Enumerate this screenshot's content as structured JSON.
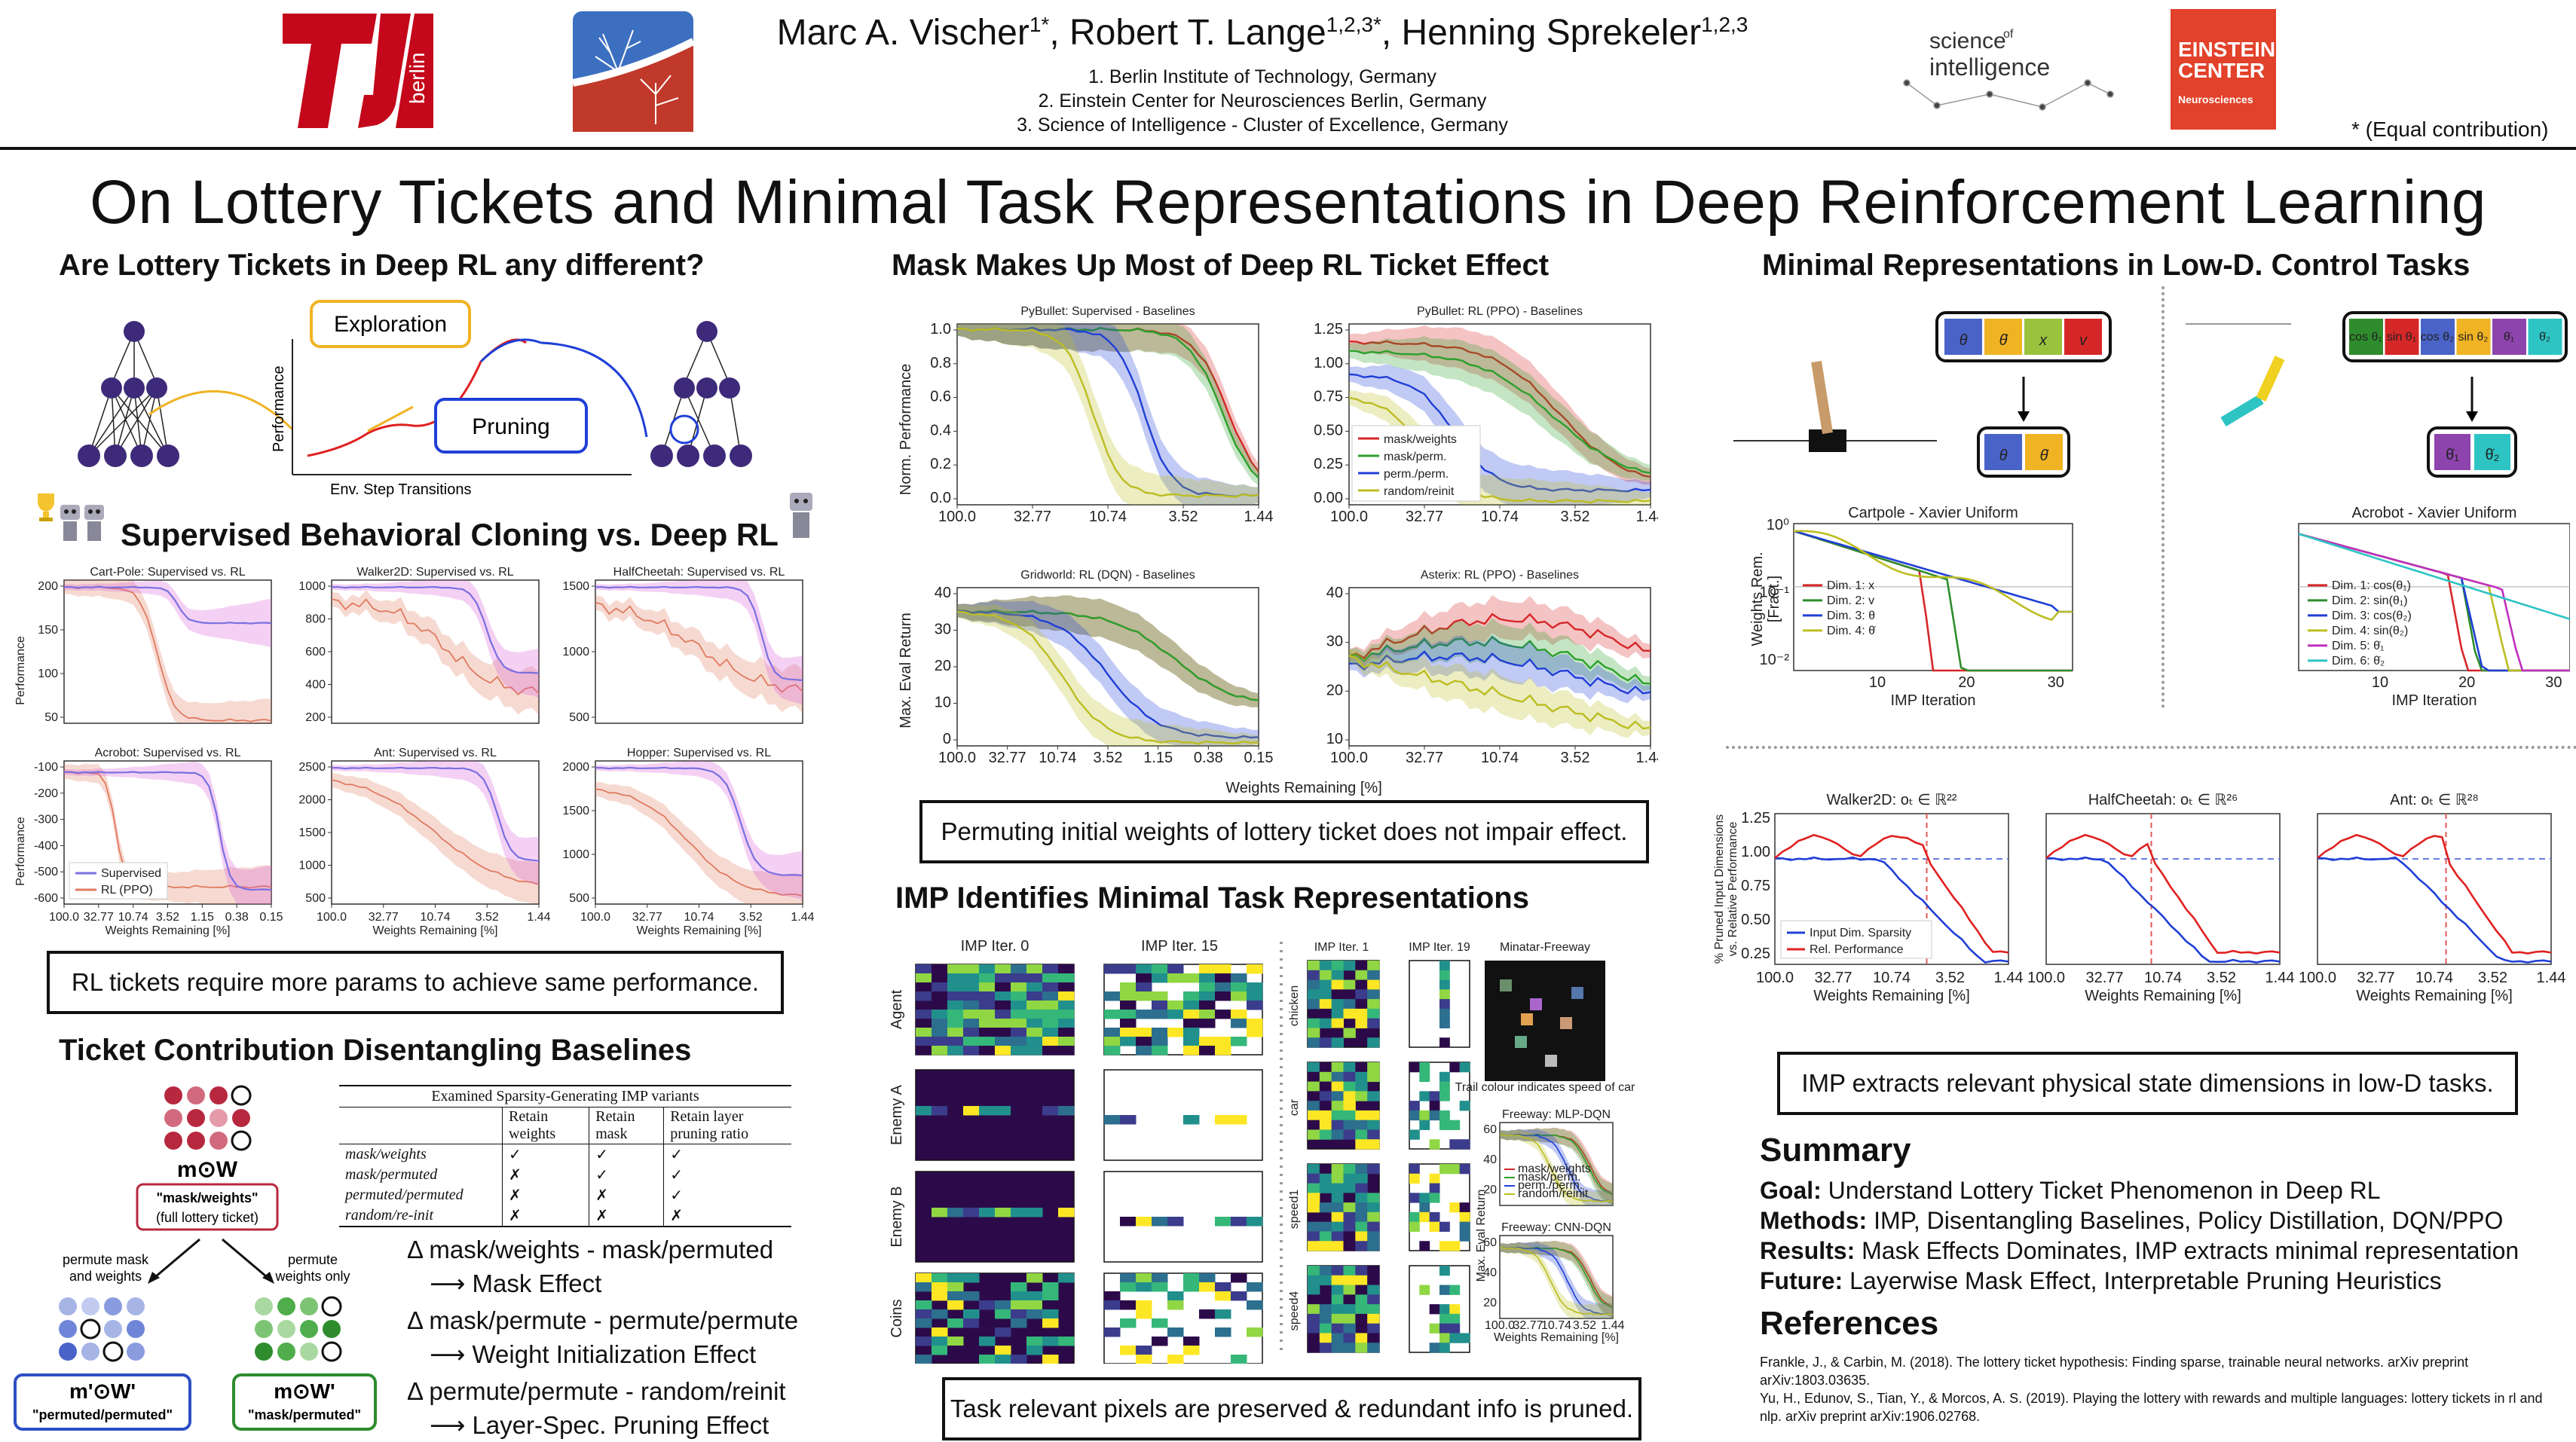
{
  "header": {
    "author_1": "Marc A. Vischer",
    "author_1_sup": "1*",
    "author_2": "Robert T. Lange",
    "author_2_sup": "1,2,3*",
    "author_3": "Henning Sprekeler",
    "author_3_sup": "1,2,3",
    "affiliations": [
      "1. Berlin Institute of Technology, Germany",
      "2. Einstein Center for Neurosciences Berlin, Germany",
      "3. Science of Intelligence - Cluster of Excellence, Germany"
    ],
    "equal_contribution": "* (Equal contribution)",
    "tu_logo_text": "berlin",
    "soi_logo_line1": "science",
    "soi_logo_of": "of",
    "soi_logo_line2": "intelligence",
    "ecn_logo_line1": "EINSTEIN",
    "ecn_logo_line2": "CENTER",
    "ecn_logo_line3": "Neurosciences"
  },
  "title": "On Lottery Tickets and Minimal Task Representations in Deep Reinforcement Learning",
  "col1": {
    "s1_title": "Are Lottery Tickets in Deep RL any different?",
    "exploration": "Exploration",
    "pruning": "Pruning",
    "performance_label": "Performance",
    "env_steps_label": "Env. Step Transitions",
    "s2_title": "Supervised Behavioral Cloning vs. Deep RL",
    "panels": [
      {
        "title": "Cart-Pole: Supervised vs. RL",
        "yticks": [
          "200",
          "150",
          "100",
          "50"
        ]
      },
      {
        "title": "Walker2D: Supervised vs. RL",
        "yticks": [
          "1000",
          "800",
          "600",
          "400",
          "200"
        ]
      },
      {
        "title": "HalfCheetah: Supervised vs. RL",
        "yticks": [
          "1500",
          "1000",
          "500"
        ]
      },
      {
        "title": "Acrobot: Supervised vs. RL",
        "yticks": [
          "-100",
          "-200",
          "-300",
          "-400",
          "-500",
          "-600"
        ]
      },
      {
        "title": "Ant: Supervised vs. RL",
        "yticks": [
          "2500",
          "2000",
          "1500",
          "1000",
          "500"
        ]
      },
      {
        "title": "Hopper: Supervised vs. RL",
        "yticks": [
          "2000",
          "1500",
          "1000",
          "500"
        ]
      }
    ],
    "performance_axis": "Performance",
    "x_ticks_long": [
      "100.0",
      "32.77",
      "10.74",
      "3.52",
      "1.15",
      "0.38",
      "0.15"
    ],
    "x_ticks_short": [
      "100.0",
      "32.77",
      "10.74",
      "3.52",
      "1.44"
    ],
    "weights_remaining": "Weights Remaining [%]",
    "legend_supervised": "Supervised",
    "legend_rl": "RL (PPO)",
    "note": "RL tickets require more params to achieve same performance.",
    "s3_title": "Ticket Contribution Disentangling Baselines",
    "mw_label": "m⊙W",
    "mw_box_line1": "\"mask/weights\"",
    "mw_box_line2": "(full lottery ticket)",
    "permute_mask_weights_1": "permute mask",
    "permute_mask_weights_2": "and weights",
    "permute_weights_only_1": "permute",
    "permute_weights_only_2": "weights only",
    "mpwp_label": "m'⊙W'",
    "mpwp_box": "\"permuted/permuted\"",
    "mwp_label": "m⊙W'",
    "mwp_box": "\"mask/permuted\"",
    "table_caption": "Examined Sparsity-Generating IMP variants",
    "table_headers": [
      "Retain weights",
      "Retain mask",
      "Retain layer pruning ratio"
    ],
    "table_rows": [
      {
        "name": "mask/weights",
        "cells": [
          "✓",
          "✓",
          "✓"
        ]
      },
      {
        "name": "mask/permuted",
        "cells": [
          "✗",
          "✓",
          "✓"
        ]
      },
      {
        "name": "permuted/permuted",
        "cells": [
          "✗",
          "✗",
          "✓"
        ]
      },
      {
        "name": "random/re-init",
        "cells": [
          "✗",
          "✗",
          "✗"
        ]
      }
    ],
    "effects": [
      {
        "diff": "Δ mask/weights  - mask/permuted",
        "effect": "Mask Effect"
      },
      {
        "diff": "Δ mask/permute  - permute/permute",
        "effect": "Weight Initialization Effect"
      },
      {
        "diff": "Δ permute/permute  - random/reinit",
        "effect": "Layer-Spec. Pruning Effect"
      }
    ],
    "arrow": "⟶"
  },
  "col2": {
    "s1_title": "Mask Makes Up Most of Deep RL Ticket Effect",
    "p1_title": "PyBullet: Supervised - Baselines",
    "p2_title": "PyBullet: RL (PPO) - Baselines",
    "p3_title": "Gridworld: RL (DQN) - Baselines",
    "p4_title": "Asterix: RL (PPO) - Baselines",
    "norm_perf": "Norm. Performance",
    "max_eval": "Max. Eval Return",
    "weights_remaining": "Weights Remaining [%]",
    "p1_yticks": [
      "1.0",
      "0.8",
      "0.6",
      "0.4",
      "0.2",
      "0.0"
    ],
    "p2_yticks": [
      "1.25",
      "1.00",
      "0.75",
      "0.50",
      "0.25",
      "0.00"
    ],
    "p3_yticks": [
      "40",
      "30",
      "20",
      "10",
      "0"
    ],
    "p4_yticks": [
      "40",
      "30",
      "20",
      "10"
    ],
    "xt_short": [
      "100.0",
      "32.77",
      "10.74",
      "3.52",
      "1.44"
    ],
    "xt_long": [
      "100.0",
      "32.77",
      "10.74",
      "3.52",
      "1.15",
      "0.38",
      "0.15"
    ],
    "legend": [
      "mask/weights",
      "mask/perm.",
      "perm./perm.",
      "random/reinit"
    ],
    "note": "Permuting initial weights of lottery ticket does not impair effect.",
    "s2_title": "IMP Identifies Minimal Task Representations",
    "imp_iter_0": "IMP Iter.  0",
    "imp_iter_15": "IMP Iter. 15",
    "imp_iter_1": "IMP Iter.  1",
    "imp_iter_19": "IMP Iter. 19",
    "rows_left": [
      "Agent",
      "Enemy A",
      "Enemy B",
      "Coins"
    ],
    "rows_right": [
      "chicken",
      "car",
      "speed1",
      "speed4"
    ],
    "minatar_title": "Minatar-Freeway",
    "minatar_caption": "Trail colour indicates speed of car",
    "freeway_mlp": "Freeway: MLP-DQN",
    "freeway_cnn": "Freeway: CNN-DQN",
    "freeway_ylabel": "Max. Eval Return",
    "freeway_legend": [
      "mask/weights",
      "mask/perm.",
      "perm./perm.",
      "random/reinit"
    ],
    "freeway_xticks": [
      "100.0",
      "32.77",
      "10.74",
      "3.52",
      "1.44"
    ],
    "freeway_xlabel": "Weights Remaining [%]",
    "freeway_yticks_1": [
      "60",
      "40",
      "20"
    ],
    "freeway_yticks_2": [
      "60",
      "40",
      "20"
    ],
    "note2": "Task relevant pixels are preserved & redundant info is pruned."
  },
  "col3": {
    "s1_title": "Minimal Representations in Low-D. Control Tasks",
    "cartpole_inputs": [
      "θ",
      "θ̇",
      "x",
      "v"
    ],
    "cartpole_outputs": [
      "θ",
      "θ̇"
    ],
    "acrobot_inputs": [
      "cos θ₁",
      "sin θ₁",
      "cos θ₂",
      "sin θ₂",
      "θ̇₁",
      "θ̇₂"
    ],
    "acrobot_outputs": [
      "θ̇₁",
      "θ̇₂"
    ],
    "cp_title": "Cartpole - Xavier Uniform",
    "ac_title": "Acrobot - Xavier Uniform",
    "weights_rem": "Weights Rem.",
    "fract": "[Fract.]",
    "imp_iteration": "IMP Iteration",
    "cp_yticks": [
      "10⁰",
      "10⁻¹",
      "10⁻²"
    ],
    "xticks_iter": [
      "10",
      "20",
      "30"
    ],
    "cp_legend": [
      "Dim. 1: x",
      "Dim. 2: v",
      "Dim. 3: θ",
      "Dim. 4: θ̇"
    ],
    "ac_legend": [
      "Dim. 1: cos(θ₁)",
      "Dim. 2: sin(θ₁)",
      "Dim. 3: cos(θ₂)",
      "Dim. 4: sin(θ₂)",
      "Dim. 5: θ̇₁",
      "Dim. 6: θ̇₂"
    ],
    "w_title": "Walker2D: oₜ ∈ ℝ²²",
    "h_title": "HalfCheetah: oₜ ∈ ℝ²⁶",
    "a_title": "Ant: oₜ ∈ ℝ²⁸",
    "pruned_label_1": "% Pruned Input Dimensions",
    "pruned_label_2": "vs. Relative Performance",
    "ld_yticks": [
      "1.25",
      "1.00",
      "0.75",
      "0.50",
      "0.25"
    ],
    "ld_xticks": [
      "100.0",
      "32.77",
      "10.74",
      "3.52",
      "1.44"
    ],
    "weights_remaining": "Weights Remaining [%]",
    "ld_legend": [
      "Input Dim. Sparsity",
      "Rel. Performance"
    ],
    "note": "IMP extracts relevant physical state dimensions in low-D tasks.",
    "summary_title": "Summary",
    "summary": [
      {
        "k": "Goal:",
        "v": " Understand Lottery Ticket Phenomenon in Deep RL"
      },
      {
        "k": "Methods:",
        "v": " IMP, Disentangling Baselines, Policy Distillation, DQN/PPO"
      },
      {
        "k": "Results:",
        "v": " Mask Effects Dominates, IMP extracts minimal representation"
      },
      {
        "k": "Future:",
        "v": " Layerwise Mask Effect, Interpretable Pruning Heuristics"
      }
    ],
    "refs_title": "References",
    "refs": [
      "Frankle, J., & Carbin, M. (2018). The lottery ticket hypothesis: Finding sparse, trainable neural networks. arXiv preprint arXiv:1803.03635.",
      "Yu, H., Edunov, S., Tian, Y., & Morcos, A. S. (2019). Playing the lottery with rewards and multiple languages: lottery tickets in rl and nlp. arXiv preprint arXiv:1906.02768."
    ]
  },
  "colors": {
    "supervised": "#7b6fe0",
    "rl": "#e07a5f",
    "mask_weights": "#d62728",
    "mask_perm": "#2ca02c",
    "perm_perm": "#1f3fd6",
    "random_reinit": "#bcbd22"
  }
}
